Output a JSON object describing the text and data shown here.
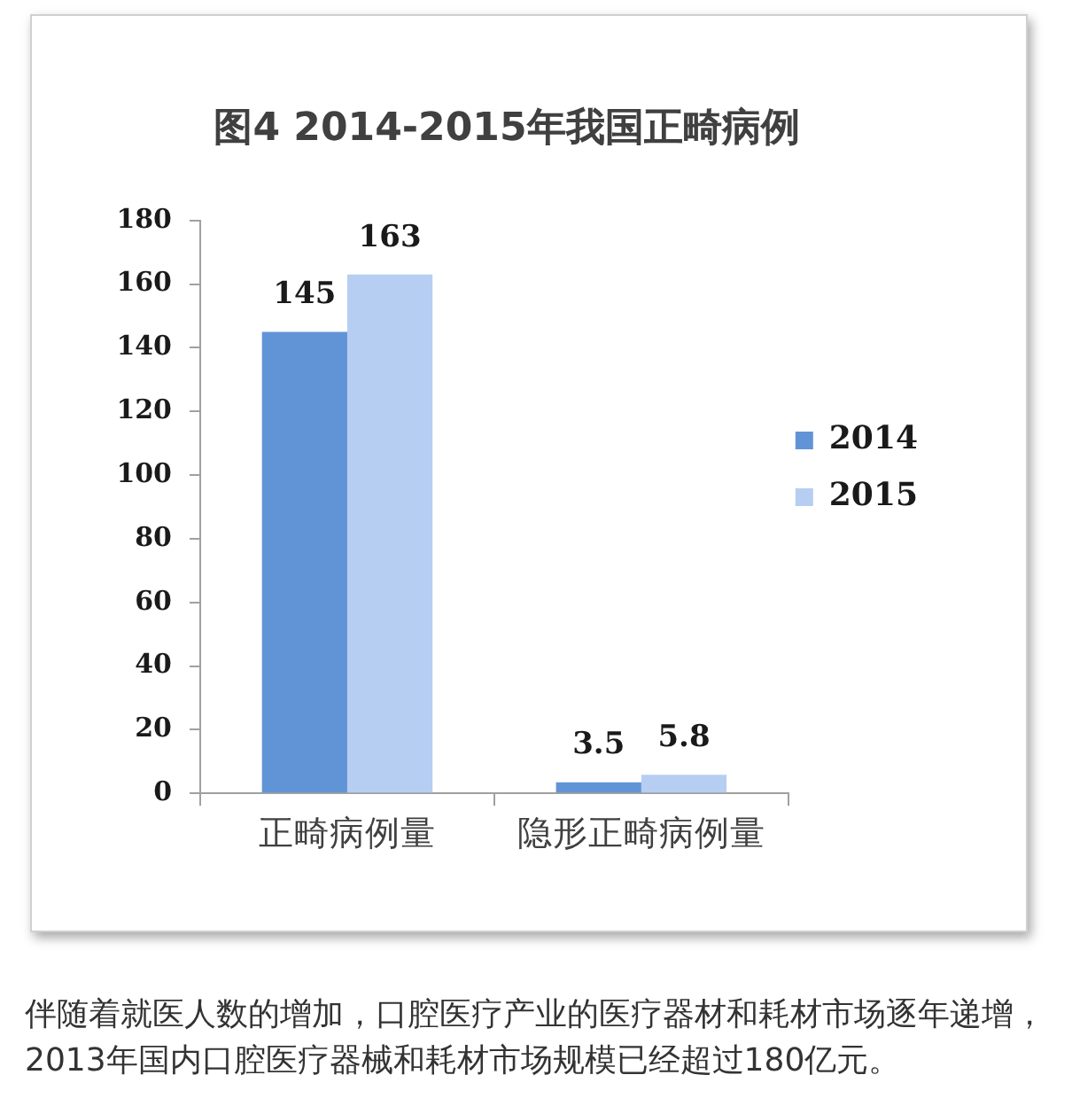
{
  "chart_data": {
    "type": "bar",
    "title": "图4 2014-2015年我国正畸病例",
    "categories": [
      "正畸病例量",
      "隐形正畸病例量"
    ],
    "series": [
      {
        "name": "2014",
        "color": "#6194d6",
        "values": [
          145,
          3.5
        ]
      },
      {
        "name": "2015",
        "color": "#b6cef2",
        "values": [
          163,
          5.8
        ]
      }
    ],
    "ylim": [
      0,
      180
    ],
    "yticks": [
      0,
      20,
      40,
      60,
      80,
      100,
      120,
      140,
      160,
      180
    ],
    "grid": false,
    "legend": "right",
    "data_labels": true,
    "annotations": [
      "伴随着就医人数的增加，口腔医疗产业的医疗器材和耗材市场逐年递增，2013年国内口腔医疗器械和耗材市场规模已经超过180亿元。"
    ]
  }
}
